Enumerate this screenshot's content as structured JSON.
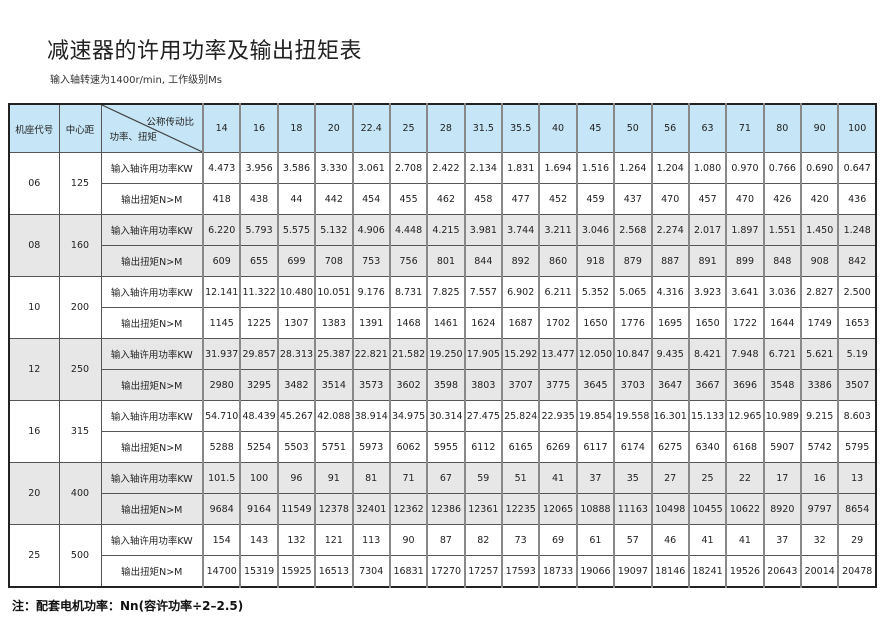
{
  "title": "减速器的许用功率及输出扭矩表",
  "subtitle": "输入轴转速为1400r/min, 工作级别Ms",
  "colors": {
    "header_bg": "#c6e6f7",
    "alt_row_bg": "#e7e7e7",
    "border": "#555555"
  },
  "table": {
    "headers": {
      "frame": "机座代号",
      "center": "中心距",
      "ratio": "公称传动比",
      "power_torque": "功率、扭矩"
    },
    "ratios": [
      "14",
      "16",
      "18",
      "20",
      "22.4",
      "25",
      "28",
      "31.5",
      "35.5",
      "40",
      "45",
      "50",
      "56",
      "63",
      "71",
      "80",
      "90",
      "100"
    ],
    "row_labels": {
      "power": "输入轴许用功率KW",
      "torque": "输出扭矩N>M"
    },
    "groups": [
      {
        "frame": "06",
        "center": "125",
        "power": [
          "4.473",
          "3.956",
          "3.586",
          "3.330",
          "3.061",
          "2.708",
          "2.422",
          "2.134",
          "1.831",
          "1.694",
          "1.516",
          "1.264",
          "1.204",
          "1.080",
          "0.970",
          "0.766",
          "0.690",
          "0.647"
        ],
        "torque": [
          "418",
          "438",
          "44",
          "442",
          "454",
          "455",
          "462",
          "458",
          "477",
          "452",
          "459",
          "437",
          "470",
          "457",
          "470",
          "426",
          "420",
          "436"
        ]
      },
      {
        "frame": "08",
        "center": "160",
        "power": [
          "6.220",
          "5.793",
          "5.575",
          "5.132",
          "4.906",
          "4.448",
          "4.215",
          "3.981",
          "3.744",
          "3.211",
          "3.046",
          "2.568",
          "2.274",
          "2.017",
          "1.897",
          "1.551",
          "1.450",
          "1.248"
        ],
        "torque": [
          "609",
          "655",
          "699",
          "708",
          "753",
          "756",
          "801",
          "844",
          "892",
          "860",
          "918",
          "879",
          "887",
          "891",
          "899",
          "848",
          "908",
          "842"
        ]
      },
      {
        "frame": "10",
        "center": "200",
        "power": [
          "12.141",
          "11.322",
          "10.480",
          "10.051",
          "9.176",
          "8.731",
          "7.825",
          "7.557",
          "6.902",
          "6.211",
          "5.352",
          "5.065",
          "4.316",
          "3.923",
          "3.641",
          "3.036",
          "2.827",
          "2.500"
        ],
        "torque": [
          "1145",
          "1225",
          "1307",
          "1383",
          "1391",
          "1468",
          "1461",
          "1624",
          "1687",
          "1702",
          "1650",
          "1776",
          "1695",
          "1650",
          "1722",
          "1644",
          "1749",
          "1653"
        ]
      },
      {
        "frame": "12",
        "center": "250",
        "power": [
          "31.937",
          "29.857",
          "28.313",
          "25.387",
          "22.821",
          "21.582",
          "19.250",
          "17.905",
          "15.292",
          "13.477",
          "12.050",
          "10.847",
          "9.435",
          "8.421",
          "7.948",
          "6.721",
          "5.621",
          "5.19"
        ],
        "torque": [
          "2980",
          "3295",
          "3482",
          "3514",
          "3573",
          "3602",
          "3598",
          "3803",
          "3707",
          "3775",
          "3645",
          "3703",
          "3647",
          "3667",
          "3696",
          "3548",
          "3386",
          "3507"
        ]
      },
      {
        "frame": "16",
        "center": "315",
        "power": [
          "54.710",
          "48.439",
          "45.267",
          "42.088",
          "38.914",
          "34.975",
          "30.314",
          "27.475",
          "25.824",
          "22.935",
          "19.854",
          "19.558",
          "16.301",
          "15.133",
          "12.965",
          "10.989",
          "9.215",
          "8.603"
        ],
        "torque": [
          "5288",
          "5254",
          "5503",
          "5751",
          "5973",
          "6062",
          "5955",
          "6112",
          "6165",
          "6269",
          "6117",
          "6174",
          "6275",
          "6340",
          "6168",
          "5907",
          "5742",
          "5795"
        ]
      },
      {
        "frame": "20",
        "center": "400",
        "power": [
          "101.5",
          "100",
          "96",
          "91",
          "81",
          "71",
          "67",
          "59",
          "51",
          "41",
          "37",
          "35",
          "27",
          "25",
          "22",
          "17",
          "16",
          "13"
        ],
        "torque": [
          "9684",
          "9164",
          "11549",
          "12378",
          "32401",
          "12362",
          "12386",
          "12361",
          "12235",
          "12065",
          "10888",
          "11163",
          "10498",
          "10455",
          "10622",
          "8920",
          "9797",
          "8654"
        ]
      },
      {
        "frame": "25",
        "center": "500",
        "power": [
          "154",
          "143",
          "132",
          "121",
          "113",
          "90",
          "87",
          "82",
          "73",
          "69",
          "61",
          "57",
          "46",
          "41",
          "41",
          "37",
          "32",
          "29"
        ],
        "torque": [
          "14700",
          "15319",
          "15925",
          "16513",
          "7304",
          "16831",
          "17270",
          "17257",
          "17593",
          "18733",
          "19066",
          "19097",
          "18146",
          "18241",
          "19526",
          "20643",
          "20014",
          "20478"
        ]
      }
    ]
  },
  "note": "注：配套电机功率：Nn(容许功率÷2–2.5)"
}
